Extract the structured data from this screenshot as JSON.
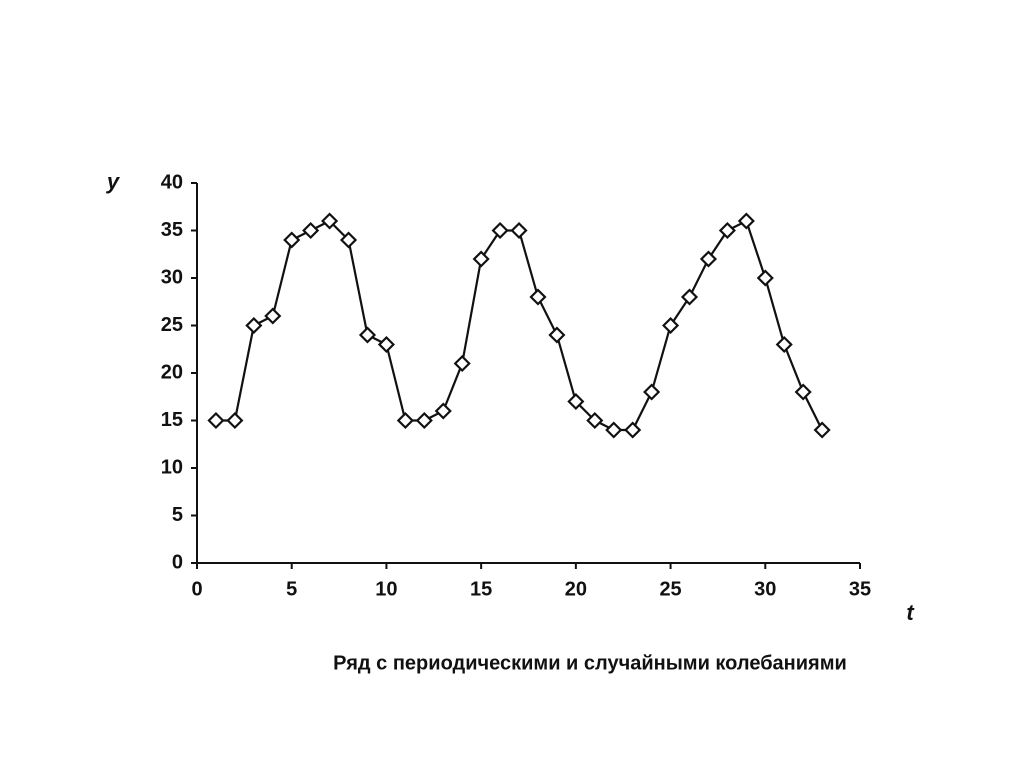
{
  "chart_data": {
    "type": "line",
    "y_label": "y",
    "x_label": "t",
    "caption": "Ряд с периодическими и случайными колебаниями",
    "x": [
      1,
      2,
      3,
      4,
      5,
      6,
      7,
      8,
      9,
      10,
      11,
      12,
      13,
      14,
      15,
      16,
      17,
      18,
      19,
      20,
      21,
      22,
      23,
      24,
      25,
      26,
      27,
      28,
      29,
      30,
      31,
      32,
      33
    ],
    "values": [
      15,
      15,
      25,
      26,
      34,
      35,
      36,
      34,
      24,
      23,
      15,
      15,
      16,
      21,
      32,
      35,
      35,
      28,
      24,
      17,
      15,
      14,
      14,
      18,
      25,
      28,
      32,
      35,
      36,
      30,
      23,
      18,
      14
    ],
    "color": "#111111",
    "marker": "diamond",
    "xlim": [
      0,
      35
    ],
    "xticks": [
      0,
      5,
      10,
      15,
      20,
      25,
      30,
      35
    ],
    "ylim": [
      0,
      40
    ],
    "yticks": [
      0,
      5,
      10,
      15,
      20,
      25,
      30,
      35,
      40
    ]
  }
}
